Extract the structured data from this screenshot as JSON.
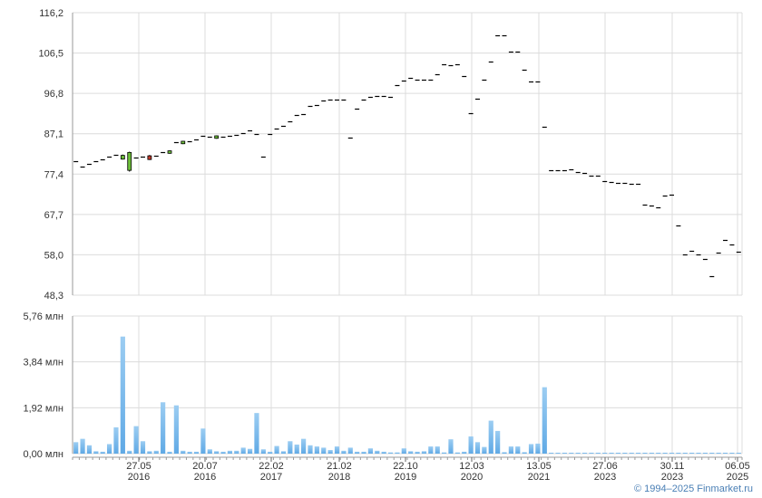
{
  "chart_data": [
    {
      "type": "candlestick",
      "ylim": [
        48.3,
        116.2
      ],
      "y_ticks": [
        "116,2",
        "106,5",
        "96,8",
        "87,1",
        "77,4",
        "67,7",
        "58,0",
        "48,3"
      ],
      "grid": true,
      "colors": {
        "tick": "#000000",
        "up": "#6dbf3a",
        "down": "#c0392b",
        "grid": "#dcdcdc",
        "axis": "#999999"
      },
      "series": [
        {
          "values": [
            80.5,
            79.2,
            79.8,
            80.5,
            80.9,
            81.5,
            82.0,
            81.4,
            80.8,
            81.3,
            81.5,
            81.0,
            81.8,
            82.6,
            80.2,
            85.0,
            85.3,
            85.4,
            85.7,
            86.6,
            86.3,
            86.3,
            86.3,
            86.6,
            86.8,
            87.2,
            87.8,
            87.0,
            81.5,
            87.0,
            88.3,
            89.0,
            90.1,
            91.5,
            91.8,
            93.7,
            94.0,
            95.0,
            95.2,
            95.3,
            95.3,
            86.2,
            93.2,
            95.2,
            95.9,
            96.2,
            96.2,
            95.9,
            98.8,
            99.9,
            100.5,
            100.2,
            100.1,
            100.0,
            101.5,
            103.9,
            103.6,
            103.8,
            101.0,
            92.0,
            95.6,
            100.2,
            104.4,
            110.7,
            110.8,
            106.8,
            106.9,
            102.5,
            99.7,
            99.7,
            88.7,
            78.4,
            78.4,
            78.4,
            78.5,
            78.0,
            77.7,
            77.0,
            77.1,
            75.7,
            75.5,
            75.3,
            75.3,
            75.1,
            75.0,
            70.0,
            69.9,
            69.5,
            72.2,
            72.4,
            65.0,
            58.0,
            59.0,
            58.0,
            57.1,
            52.9,
            58.5,
            61.5,
            60.4,
            58.8
          ],
          "candles": [
            {
              "i": 7,
              "open": 81.0,
              "close": 81.9,
              "high": 82.1,
              "low": 80.9
            },
            {
              "i": 8,
              "open": 78.3,
              "close": 82.6,
              "high": 82.8,
              "low": 78.0
            },
            {
              "i": 11,
              "open": 81.8,
              "close": 80.9,
              "high": 82.0,
              "low": 80.8
            },
            {
              "i": 14,
              "open": 82.4,
              "close": 83.0,
              "high": 83.1,
              "low": 82.3
            },
            {
              "i": 16,
              "open": 84.7,
              "close": 85.3,
              "high": 85.4,
              "low": 84.6
            },
            {
              "i": 21,
              "open": 86.0,
              "close": 86.6,
              "high": 86.7,
              "low": 85.9
            }
          ]
        }
      ]
    },
    {
      "type": "bar",
      "y_ticks": [
        "5,76 млн",
        "3,84 млн",
        "1,92 млн",
        "0,00 млн"
      ],
      "ylim": [
        0,
        5.76
      ],
      "units": "млн",
      "x_ticks": [
        {
          "label": "27.05",
          "year": "2016"
        },
        {
          "label": "20.07",
          "year": "2016"
        },
        {
          "label": "22.02",
          "year": "2017"
        },
        {
          "label": "21.02",
          "year": "2018"
        },
        {
          "label": "22.10",
          "year": "2019"
        },
        {
          "label": "12.03",
          "year": "2020"
        },
        {
          "label": "13.05",
          "year": "2021"
        },
        {
          "label": "27.06",
          "year": "2023"
        },
        {
          "label": "30.11",
          "year": "2023"
        },
        {
          "label": "06.05",
          "year": "2025"
        }
      ],
      "colors": {
        "bar_top": "#9ccdf2",
        "bar_bottom": "#5fa9e5"
      },
      "values": [
        0.48,
        0.62,
        0.35,
        0.1,
        0.08,
        0.4,
        1.1,
        4.9,
        0.12,
        1.15,
        0.52,
        0.1,
        0.12,
        2.15,
        0.08,
        2.02,
        0.12,
        0.08,
        0.08,
        1.05,
        0.18,
        0.1,
        0.08,
        0.12,
        0.12,
        0.25,
        0.2,
        1.7,
        0.18,
        0.08,
        0.32,
        0.1,
        0.52,
        0.38,
        0.62,
        0.35,
        0.3,
        0.25,
        0.15,
        0.3,
        0.12,
        0.25,
        0.08,
        0.08,
        0.22,
        0.12,
        0.08,
        0.05,
        0.05,
        0.22,
        0.1,
        0.08,
        0.1,
        0.3,
        0.3,
        0.05,
        0.6,
        0.05,
        0.08,
        0.72,
        0.48,
        0.28,
        1.38,
        0.95,
        0.06,
        0.3,
        0.3,
        0.06,
        0.4,
        0.42,
        2.78,
        0.02,
        0.02,
        0.02,
        0.02,
        0.02,
        0.02,
        0.02,
        0.02,
        0.02,
        0.02,
        0.02,
        0.02,
        0.02,
        0.02,
        0.02,
        0.02,
        0.02,
        0.02,
        0.02,
        0.02,
        0.02,
        0.02,
        0.02,
        0.02,
        0.02,
        0.02,
        0.02,
        0.02,
        0.02
      ]
    }
  ],
  "copyright": "© 1994–2025 Finmarket.ru"
}
